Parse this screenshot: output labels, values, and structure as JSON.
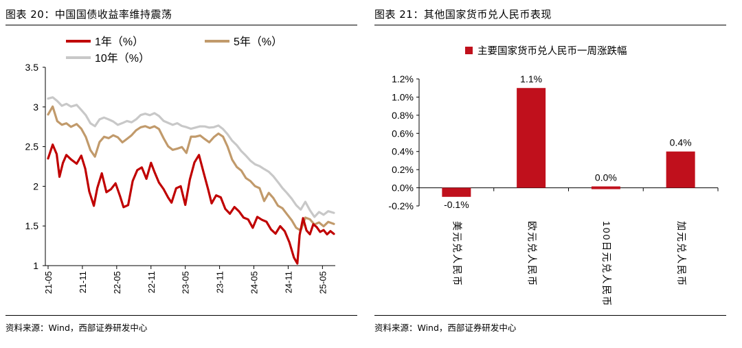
{
  "left": {
    "title": "图表 20：中国国债收益率维持震荡",
    "source": "资料来源：Wind，西部证券研发中心",
    "chart_data": {
      "type": "line",
      "title": "中国国债收益率维持震荡",
      "xlabel": "",
      "ylabel": "",
      "ylim": [
        1,
        3.5
      ],
      "yticks": [
        "3.5",
        "3",
        "2.5",
        "2",
        "1.5",
        "1"
      ],
      "ytick_values": [
        3.5,
        3,
        2.5,
        2,
        1.5,
        1
      ],
      "x_tick_labels": [
        "21-05",
        "21-11",
        "22-05",
        "22-11",
        "23-05",
        "23-11",
        "24-05",
        "24-11",
        "25-05"
      ],
      "x_range_months": [
        0,
        50
      ],
      "legend": [
        "1年（%）",
        "5年（%）",
        "10年（%）"
      ],
      "colors": [
        "#C00000",
        "#C19A6B",
        "#C8C8C8"
      ],
      "series": [
        {
          "name": "1年（%）",
          "x": [
            0,
            0.8,
            1.5,
            2.0,
            2.6,
            3.2,
            4.0,
            5.0,
            5.8,
            6.5,
            7.2,
            8.0,
            8.6,
            9.4,
            10.2,
            11.0,
            11.8,
            12.6,
            13.2,
            14.0,
            14.8,
            15.6,
            16.4,
            17.2,
            18.0,
            18.6,
            19.4,
            20.2,
            21.0,
            21.6,
            22.4,
            23.2,
            24.0,
            24.8,
            25.6,
            26.4,
            27.2,
            28.0,
            28.6,
            29.4,
            30.2,
            31.0,
            31.8,
            32.6,
            33.4,
            34.2,
            35.0,
            35.8,
            36.6,
            37.4,
            38.2,
            39.0,
            39.8,
            40.6,
            41.4,
            42.2,
            43.0,
            43.6,
            44.0,
            44.6,
            45.2,
            45.8,
            46.4,
            47.0,
            47.6,
            48.2,
            48.8,
            49.4,
            50.0
          ],
          "values": [
            2.35,
            2.52,
            2.4,
            2.12,
            2.3,
            2.4,
            2.34,
            2.28,
            2.38,
            2.22,
            1.94,
            1.76,
            1.98,
            2.16,
            1.92,
            1.96,
            2.04,
            1.88,
            1.74,
            1.76,
            2.06,
            2.2,
            2.24,
            2.1,
            2.3,
            2.18,
            2.04,
            1.96,
            1.86,
            1.8,
            1.98,
            2.0,
            1.76,
            2.08,
            2.3,
            2.4,
            2.18,
            1.96,
            1.78,
            1.88,
            1.86,
            1.72,
            1.66,
            1.74,
            1.68,
            1.6,
            1.58,
            1.48,
            1.62,
            1.58,
            1.55,
            1.45,
            1.4,
            1.5,
            1.44,
            1.3,
            1.1,
            1.02,
            1.38,
            1.6,
            1.45,
            1.4,
            1.52,
            1.48,
            1.42,
            1.45,
            1.4,
            1.44,
            1.4
          ]
        },
        {
          "name": "5年（%）",
          "x": [
            0,
            0.8,
            1.6,
            2.4,
            3.2,
            4.0,
            5.0,
            5.8,
            6.6,
            7.4,
            8.2,
            9.0,
            9.8,
            10.6,
            11.4,
            12.2,
            13.0,
            13.8,
            14.6,
            15.4,
            16.2,
            17.0,
            17.8,
            18.6,
            19.4,
            20.2,
            21.0,
            21.8,
            22.6,
            23.4,
            24.2,
            25.0,
            25.8,
            26.6,
            27.4,
            28.2,
            29.0,
            29.8,
            30.6,
            31.4,
            32.2,
            33.0,
            33.8,
            34.6,
            35.4,
            36.2,
            37.0,
            37.8,
            38.6,
            39.4,
            40.2,
            41.0,
            41.8,
            42.6,
            43.4,
            44.2,
            45.0,
            45.8,
            46.6,
            47.4,
            48.2,
            49.0,
            50.0
          ],
          "values": [
            2.9,
            3.0,
            2.82,
            2.78,
            2.8,
            2.75,
            2.78,
            2.72,
            2.62,
            2.46,
            2.38,
            2.56,
            2.62,
            2.6,
            2.64,
            2.62,
            2.56,
            2.6,
            2.64,
            2.7,
            2.74,
            2.76,
            2.74,
            2.76,
            2.72,
            2.6,
            2.5,
            2.46,
            2.48,
            2.5,
            2.42,
            2.62,
            2.62,
            2.64,
            2.6,
            2.56,
            2.62,
            2.66,
            2.62,
            2.5,
            2.34,
            2.25,
            2.2,
            2.1,
            2.06,
            2.0,
            1.98,
            1.82,
            1.92,
            1.85,
            1.75,
            1.72,
            1.65,
            1.58,
            1.48,
            1.44,
            1.6,
            1.58,
            1.52,
            1.55,
            1.5,
            1.55,
            1.52
          ]
        },
        {
          "name": "10年（%）",
          "x": [
            0,
            0.8,
            1.6,
            2.4,
            3.2,
            4.0,
            5.0,
            5.8,
            6.6,
            7.4,
            8.2,
            9.0,
            9.8,
            10.6,
            11.4,
            12.2,
            13.0,
            13.8,
            14.6,
            15.4,
            16.2,
            17.0,
            17.8,
            18.6,
            19.4,
            20.2,
            21.0,
            21.8,
            22.6,
            23.4,
            24.2,
            25.0,
            25.8,
            26.6,
            27.4,
            28.2,
            29.0,
            29.8,
            30.6,
            31.4,
            32.2,
            33.0,
            33.8,
            34.6,
            35.4,
            36.2,
            37.0,
            37.8,
            38.6,
            39.4,
            40.2,
            41.0,
            41.8,
            42.6,
            43.4,
            44.2,
            45.0,
            45.8,
            46.6,
            47.4,
            48.2,
            49.0,
            50.0
          ],
          "values": [
            3.1,
            3.12,
            3.08,
            3.02,
            3.04,
            3.0,
            3.02,
            2.96,
            2.9,
            2.8,
            2.76,
            2.84,
            2.86,
            2.84,
            2.82,
            2.78,
            2.8,
            2.82,
            2.8,
            2.84,
            2.9,
            2.92,
            2.9,
            2.92,
            2.88,
            2.82,
            2.8,
            2.78,
            2.8,
            2.76,
            2.74,
            2.72,
            2.74,
            2.76,
            2.76,
            2.74,
            2.74,
            2.76,
            2.72,
            2.66,
            2.58,
            2.52,
            2.44,
            2.38,
            2.32,
            2.28,
            2.26,
            2.22,
            2.18,
            2.12,
            2.05,
            1.98,
            1.92,
            1.85,
            1.76,
            1.7,
            1.8,
            1.7,
            1.62,
            1.68,
            1.64,
            1.68,
            1.66
          ]
        }
      ]
    }
  },
  "right": {
    "title": "图表 21：其他国家货币兑人民币表现",
    "source": "资料来源：Wind，西部证券研发中心",
    "chart_data": {
      "type": "bar",
      "title": "其他国家货币兑人民币表现",
      "xlabel": "",
      "ylabel": "",
      "legend": [
        "主要国家货币兑人民币一周涨跌幅"
      ],
      "color": "#C0101C",
      "categories": [
        "美元兑人民币",
        "欧元兑人民币",
        "100日元兑人民币",
        "加元兑人民币"
      ],
      "values": [
        -0.1,
        1.1,
        0.0,
        0.4
      ],
      "data_labels": [
        "-0.1%",
        "1.1%",
        "0.0%",
        "0.4%"
      ],
      "ylim": [
        -0.2,
        1.2
      ],
      "yticks": [
        "1.2%",
        "1.0%",
        "0.8%",
        "0.6%",
        "0.4%",
        "0.2%",
        "0.0%",
        "-0.2%"
      ],
      "ytick_values": [
        1.2,
        1.0,
        0.8,
        0.6,
        0.4,
        0.2,
        0.0,
        -0.2
      ]
    }
  }
}
